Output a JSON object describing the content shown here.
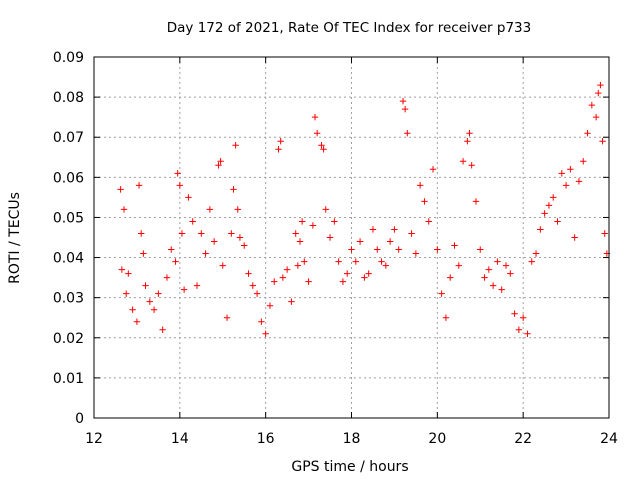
{
  "chart_data": {
    "type": "scatter",
    "title": "Day 172 of 2021, Rate Of TEC Index for receiver p733",
    "xlabel": "GPS time / hours",
    "ylabel": "ROTI / TECUs",
    "xlim": [
      12,
      24
    ],
    "ylim": [
      0,
      0.09
    ],
    "x_ticks": [
      "12",
      "14",
      "16",
      "18",
      "20",
      "22",
      "24"
    ],
    "y_ticks": [
      "0",
      "0.01",
      "0.02",
      "0.03",
      "0.04",
      "0.05",
      "0.06",
      "0.07",
      "0.08",
      "0.09"
    ],
    "x_tick_values": [
      12,
      14,
      16,
      18,
      20,
      22,
      24
    ],
    "y_tick_values": [
      0,
      0.01,
      0.02,
      0.03,
      0.04,
      0.05,
      0.06,
      0.07,
      0.08,
      0.09
    ],
    "grid": true,
    "marker": "+",
    "series_color": "#ff0000",
    "series": [
      {
        "name": "ROTI",
        "x": [
          12.62,
          12.65,
          12.7,
          12.75,
          12.8,
          12.9,
          13.0,
          13.05,
          13.1,
          13.15,
          13.2,
          13.3,
          13.4,
          13.5,
          13.6,
          13.7,
          13.8,
          13.9,
          13.95,
          14.0,
          14.05,
          14.1,
          14.2,
          14.3,
          14.4,
          14.5,
          14.6,
          14.7,
          14.8,
          14.9,
          14.95,
          15.0,
          15.1,
          15.2,
          15.25,
          15.3,
          15.35,
          15.4,
          15.5,
          15.6,
          15.7,
          15.8,
          15.9,
          16.0,
          16.1,
          16.2,
          16.3,
          16.35,
          16.4,
          16.5,
          16.6,
          16.7,
          16.75,
          16.8,
          16.85,
          16.9,
          17.0,
          17.1,
          17.15,
          17.2,
          17.3,
          17.35,
          17.4,
          17.5,
          17.6,
          17.7,
          17.8,
          17.9,
          18.0,
          18.1,
          18.2,
          18.3,
          18.4,
          18.5,
          18.6,
          18.7,
          18.8,
          18.9,
          19.0,
          19.1,
          19.2,
          19.25,
          19.3,
          19.4,
          19.5,
          19.6,
          19.7,
          19.8,
          19.9,
          20.0,
          20.1,
          20.2,
          20.3,
          20.4,
          20.5,
          20.6,
          20.7,
          20.75,
          20.8,
          20.9,
          21.0,
          21.1,
          21.2,
          21.3,
          21.4,
          21.5,
          21.6,
          21.7,
          21.8,
          21.9,
          22.0,
          22.1,
          22.2,
          22.3,
          22.4,
          22.5,
          22.6,
          22.7,
          22.8,
          22.9,
          23.0,
          23.1,
          23.2,
          23.3,
          23.4,
          23.5,
          23.6,
          23.7,
          23.75,
          23.8,
          23.85,
          23.9,
          23.95
        ],
        "y": [
          0.057,
          0.037,
          0.052,
          0.031,
          0.036,
          0.027,
          0.024,
          0.058,
          0.046,
          0.041,
          0.033,
          0.029,
          0.027,
          0.031,
          0.022,
          0.035,
          0.042,
          0.039,
          0.061,
          0.058,
          0.046,
          0.032,
          0.055,
          0.049,
          0.033,
          0.046,
          0.041,
          0.052,
          0.044,
          0.063,
          0.064,
          0.038,
          0.025,
          0.046,
          0.057,
          0.068,
          0.052,
          0.045,
          0.043,
          0.036,
          0.033,
          0.031,
          0.024,
          0.021,
          0.028,
          0.034,
          0.067,
          0.069,
          0.035,
          0.037,
          0.029,
          0.046,
          0.038,
          0.044,
          0.049,
          0.039,
          0.034,
          0.048,
          0.075,
          0.071,
          0.068,
          0.067,
          0.052,
          0.045,
          0.049,
          0.039,
          0.034,
          0.036,
          0.042,
          0.039,
          0.044,
          0.035,
          0.036,
          0.047,
          0.042,
          0.039,
          0.038,
          0.044,
          0.047,
          0.042,
          0.079,
          0.077,
          0.071,
          0.046,
          0.041,
          0.058,
          0.054,
          0.049,
          0.062,
          0.042,
          0.031,
          0.025,
          0.035,
          0.043,
          0.038,
          0.064,
          0.069,
          0.071,
          0.063,
          0.054,
          0.042,
          0.035,
          0.037,
          0.033,
          0.039,
          0.032,
          0.038,
          0.036,
          0.026,
          0.022,
          0.025,
          0.021,
          0.039,
          0.041,
          0.047,
          0.051,
          0.053,
          0.055,
          0.049,
          0.061,
          0.058,
          0.062,
          0.045,
          0.059,
          0.064,
          0.071,
          0.078,
          0.075,
          0.081,
          0.083,
          0.069,
          0.046,
          0.041
        ]
      }
    ]
  }
}
